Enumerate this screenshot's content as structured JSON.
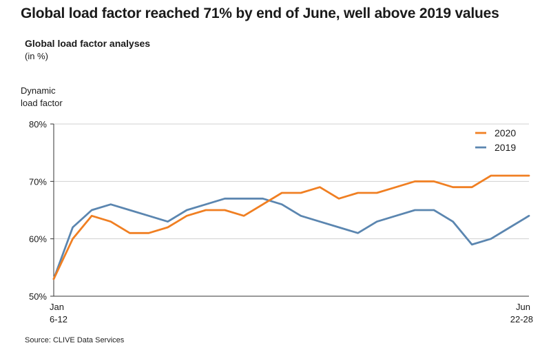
{
  "headline": "Global load factor reached 71% by end of June, well above 2019 values",
  "source": "Source: CLIVE Data Services",
  "chart_data": {
    "type": "line",
    "title": "Global load factor analyses",
    "subtitle": "(in %)",
    "ylabel_line1": "Dynamic",
    "ylabel_line2": "load factor",
    "xlabel": "",
    "ylim": [
      50,
      80
    ],
    "y_ticks": [
      {
        "value": 50,
        "label": "50%"
      },
      {
        "value": 60,
        "label": "60%"
      },
      {
        "value": 70,
        "label": "70%"
      },
      {
        "value": 80,
        "label": "80%"
      }
    ],
    "x_tick_first": {
      "line1": "Jan",
      "line2": "6-12"
    },
    "x_tick_last": {
      "line1": "Jun",
      "line2": "22-28"
    },
    "x_count": 26,
    "grid": "horizontal",
    "legend_position": "top-right",
    "series": [
      {
        "name": "2020",
        "color": "#f07f22",
        "values": [
          53,
          60,
          64,
          63,
          61,
          61,
          62,
          64,
          65,
          65,
          64,
          66,
          68,
          68,
          69,
          67,
          68,
          68,
          69,
          70,
          70,
          69,
          69,
          71,
          71,
          71
        ]
      },
      {
        "name": "2019",
        "color": "#5b86b0",
        "values": [
          53,
          62,
          65,
          66,
          65,
          64,
          63,
          65,
          66,
          67,
          67,
          67,
          66,
          64,
          63,
          62,
          61,
          63,
          64,
          65,
          65,
          63,
          59,
          60,
          62,
          64
        ]
      }
    ]
  }
}
